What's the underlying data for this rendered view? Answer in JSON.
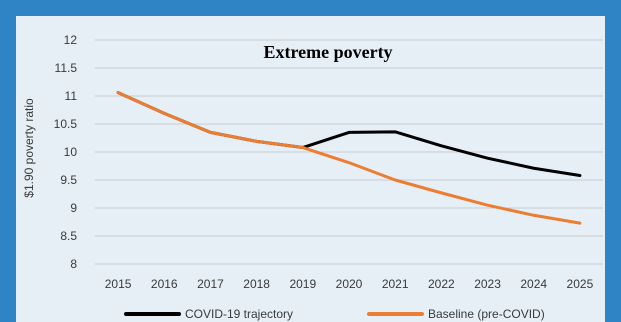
{
  "chart_data": {
    "type": "line",
    "title": "Extreme poverty",
    "xlabel": "",
    "ylabel": "$1.90  poverty ratio",
    "x": [
      2015,
      2016,
      2017,
      2018,
      2019,
      2020,
      2021,
      2022,
      2023,
      2024,
      2025
    ],
    "x_tick_labels": [
      "2015",
      "2016",
      "2017",
      "2018",
      "2019",
      "2020",
      "2021",
      "2022",
      "2023",
      "2024",
      "2025"
    ],
    "ylim": [
      8,
      12
    ],
    "y_ticks": [
      8,
      8.5,
      9,
      9.5,
      10,
      10.5,
      11,
      11.5,
      12
    ],
    "y_tick_labels": [
      "8",
      "8.5",
      "9",
      "9.5",
      "10",
      "10.5",
      "11",
      "11.5",
      "12"
    ],
    "grid": true,
    "legend_position": "bottom",
    "series": [
      {
        "name": "COVID-19 trajectory",
        "color": "#000000",
        "values": [
          11.06,
          10.69,
          10.35,
          10.19,
          10.08,
          10.35,
          10.36,
          10.11,
          9.89,
          9.71,
          9.58
        ]
      },
      {
        "name": "Baseline (pre-COVID)",
        "color": "#ed7d31",
        "values": [
          11.06,
          10.69,
          10.35,
          10.19,
          10.08,
          9.81,
          9.5,
          9.27,
          9.05,
          8.87,
          8.73
        ]
      }
    ]
  }
}
